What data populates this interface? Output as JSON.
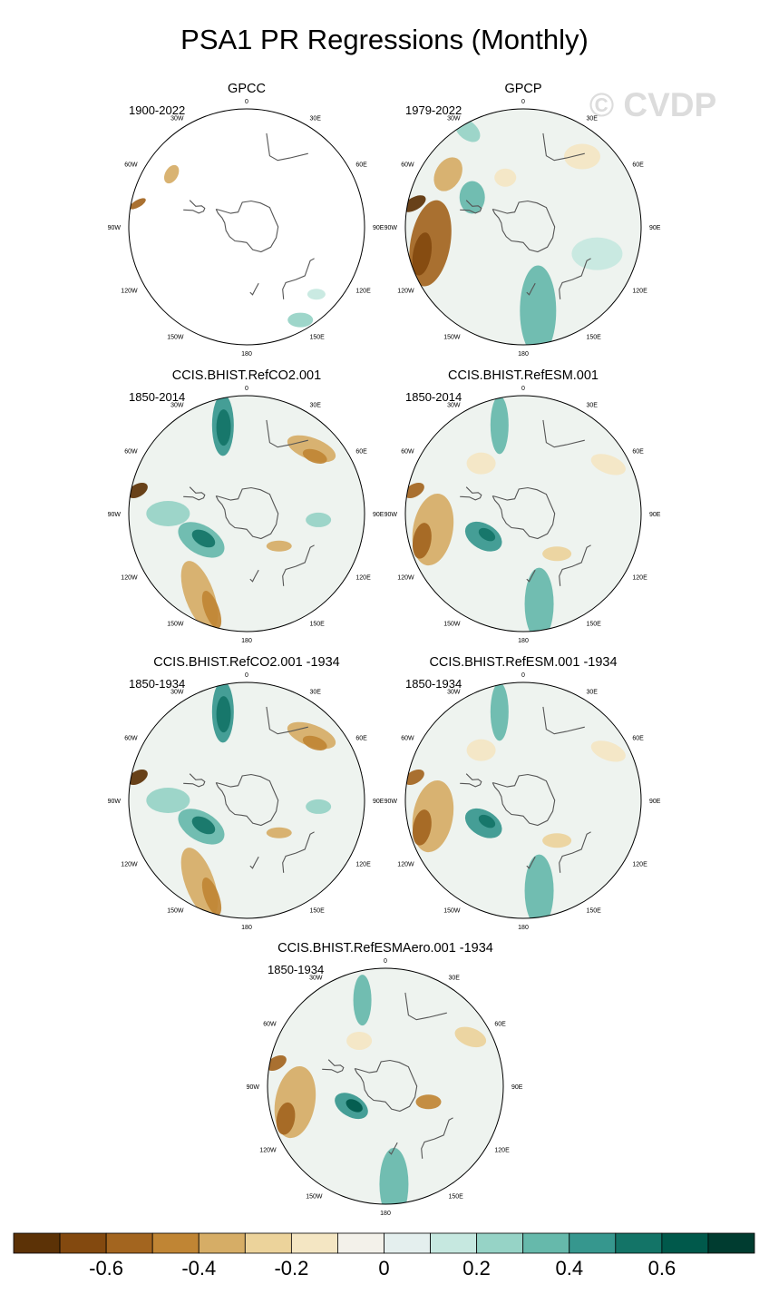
{
  "title": "PSA1 PR Regressions (Monthly)",
  "watermark": "© CVDP",
  "panels": [
    {
      "name": "GPCC",
      "period": "1900-2022",
      "pattern": "obs-gpcc"
    },
    {
      "name": "GPCP",
      "period": "1979-2022",
      "pattern": "obs-gpcp"
    },
    {
      "name": "CCIS.BHIST.RefCO2.001",
      "period": "1850-2014",
      "pattern": "co2"
    },
    {
      "name": "CCIS.BHIST.RefESM.001",
      "period": "1850-2014",
      "pattern": "esm"
    },
    {
      "name": "CCIS.BHIST.RefCO2.001 -1934",
      "period": "1850-1934",
      "pattern": "co2"
    },
    {
      "name": "CCIS.BHIST.RefESM.001 -1934",
      "period": "1850-1934",
      "pattern": "esm"
    },
    {
      "name": "CCIS.BHIST.RefESMAero.001 -1934",
      "period": "1850-1934",
      "pattern": "aero"
    }
  ],
  "lon_labels": [
    {
      "label": "0",
      "lon": 0
    },
    {
      "label": "30E",
      "lon": 30
    },
    {
      "label": "60E",
      "lon": 60
    },
    {
      "label": "90E",
      "lon": 90
    },
    {
      "label": "120E",
      "lon": 120
    },
    {
      "label": "150E",
      "lon": 150
    },
    {
      "label": "180",
      "lon": 180
    },
    {
      "label": "150W",
      "lon": -150
    },
    {
      "label": "120W",
      "lon": -120
    },
    {
      "label": "90W",
      "lon": -90
    },
    {
      "label": "60W",
      "lon": -60
    },
    {
      "label": "30W",
      "lon": -30
    }
  ],
  "colorbar": {
    "colors": [
      "#5c3206",
      "#83490f",
      "#a3651f",
      "#c08534",
      "#d6ad66",
      "#ecd39b",
      "#f4e6c3",
      "#f3f1ea",
      "#e4efee",
      "#c6e8e0",
      "#96d3c6",
      "#66b9ab",
      "#36978e",
      "#137467",
      "#00594b",
      "#003c30"
    ],
    "tick_labels": [
      "-0.6",
      "-0.4",
      "-0.2",
      "0",
      "0.2",
      "0.4",
      "0.6"
    ],
    "tick_values": [
      -0.6,
      -0.4,
      -0.2,
      0,
      0.2,
      0.4,
      0.6
    ],
    "range": [
      -0.8,
      0.8
    ]
  }
}
